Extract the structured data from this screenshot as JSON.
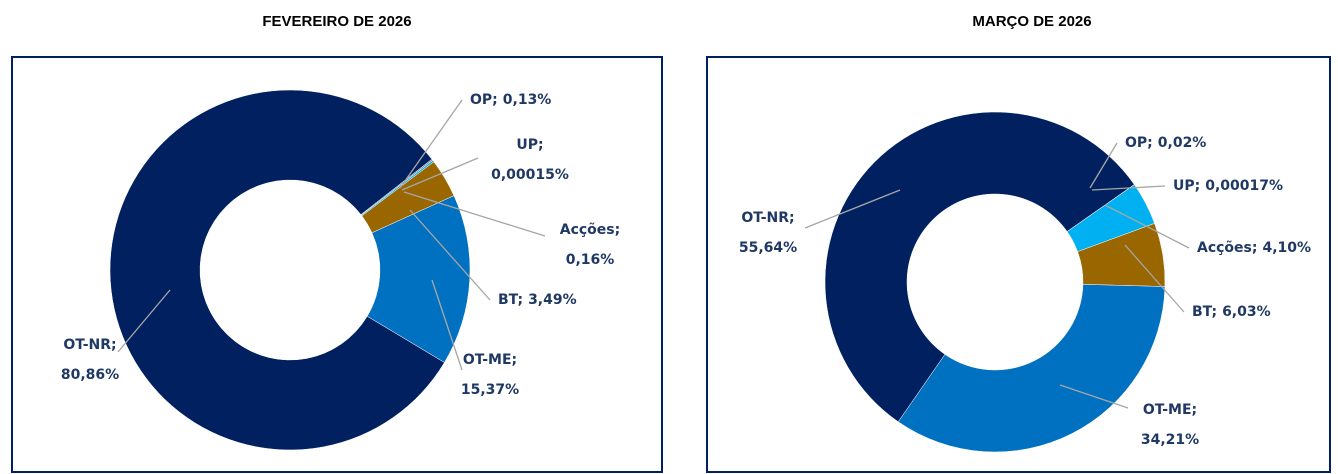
{
  "chart_data": [
    {
      "type": "donut",
      "title": "FEVEREIRO DE 2026",
      "categories": [
        "OP;",
        "UP;",
        "Acções;",
        "BT;",
        "OT-ME;",
        "OT-NR;"
      ],
      "values": [
        0.13,
        0.00015,
        0.16,
        3.49,
        15.37,
        80.86
      ],
      "value_labels": [
        "0,13%",
        "0,00015%",
        "0,16%",
        "3,49%",
        "15,37%",
        "80,86%"
      ],
      "colors": [
        "#7f7f7f",
        "#ffc000",
        "#00b0f0",
        "#996600",
        "#0070c0",
        "#002060"
      ]
    },
    {
      "type": "donut",
      "title": "MARÇO DE 2026",
      "categories": [
        "OP;",
        "UP;",
        "Acções;",
        "BT;",
        "OT-ME;",
        "OT-NR;"
      ],
      "values": [
        0.02,
        0.00017,
        4.1,
        6.03,
        34.21,
        55.64
      ],
      "value_labels": [
        "0,02%",
        "0,00017%",
        "4,10%",
        "6,03%",
        "34,21%",
        "55,64%"
      ],
      "colors": [
        "#7f7f7f",
        "#ffc000",
        "#00b0f0",
        "#996600",
        "#0070c0",
        "#002060"
      ]
    }
  ]
}
